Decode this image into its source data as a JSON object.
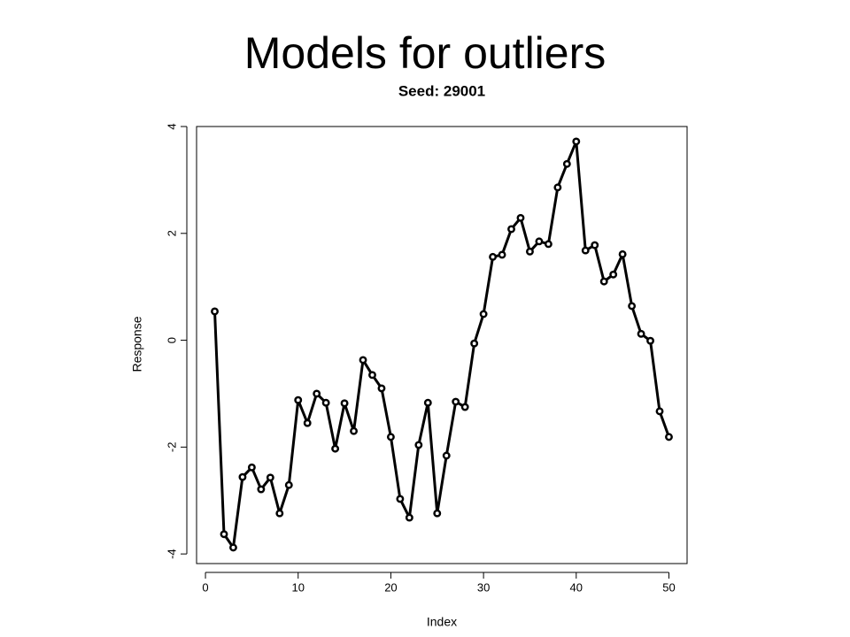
{
  "slide": {
    "title": "Models for outliers"
  },
  "chart_data": {
    "type": "line",
    "title": "Seed: 29001",
    "x_label": "Index",
    "y_label": "Response",
    "x": [
      1,
      2,
      3,
      4,
      5,
      6,
      7,
      8,
      9,
      10,
      11,
      12,
      13,
      14,
      15,
      16,
      17,
      18,
      19,
      20,
      21,
      22,
      23,
      24,
      25,
      26,
      27,
      28,
      29,
      30,
      31,
      32,
      33,
      34,
      35,
      36,
      37,
      38,
      39,
      40,
      41,
      42,
      43,
      44,
      45,
      46,
      47,
      48,
      49,
      50
    ],
    "values": [
      0.54,
      -3.63,
      -3.88,
      -2.56,
      -2.38,
      -2.79,
      -2.57,
      -3.24,
      -2.71,
      -1.12,
      -1.55,
      -1.0,
      -1.17,
      -2.03,
      -1.18,
      -1.7,
      -0.37,
      -0.65,
      -0.9,
      -1.81,
      -2.97,
      -3.32,
      -1.96,
      -1.17,
      -3.24,
      -2.16,
      -1.15,
      -1.25,
      -0.06,
      0.49,
      1.56,
      1.6,
      2.08,
      2.29,
      1.66,
      1.85,
      1.8,
      2.86,
      3.3,
      3.72,
      1.68,
      1.78,
      1.1,
      1.23,
      1.61,
      0.64,
      0.12,
      -0.01,
      -1.33,
      -1.81
    ],
    "color": "#000000",
    "xlim": [
      -0.96,
      51.96
    ],
    "xticks": [
      0,
      10,
      20,
      30,
      40,
      50
    ],
    "ylim": [
      -4.18,
      4.0
    ],
    "yticks": [
      -4,
      -2,
      0,
      2,
      4
    ],
    "grid": false
  }
}
